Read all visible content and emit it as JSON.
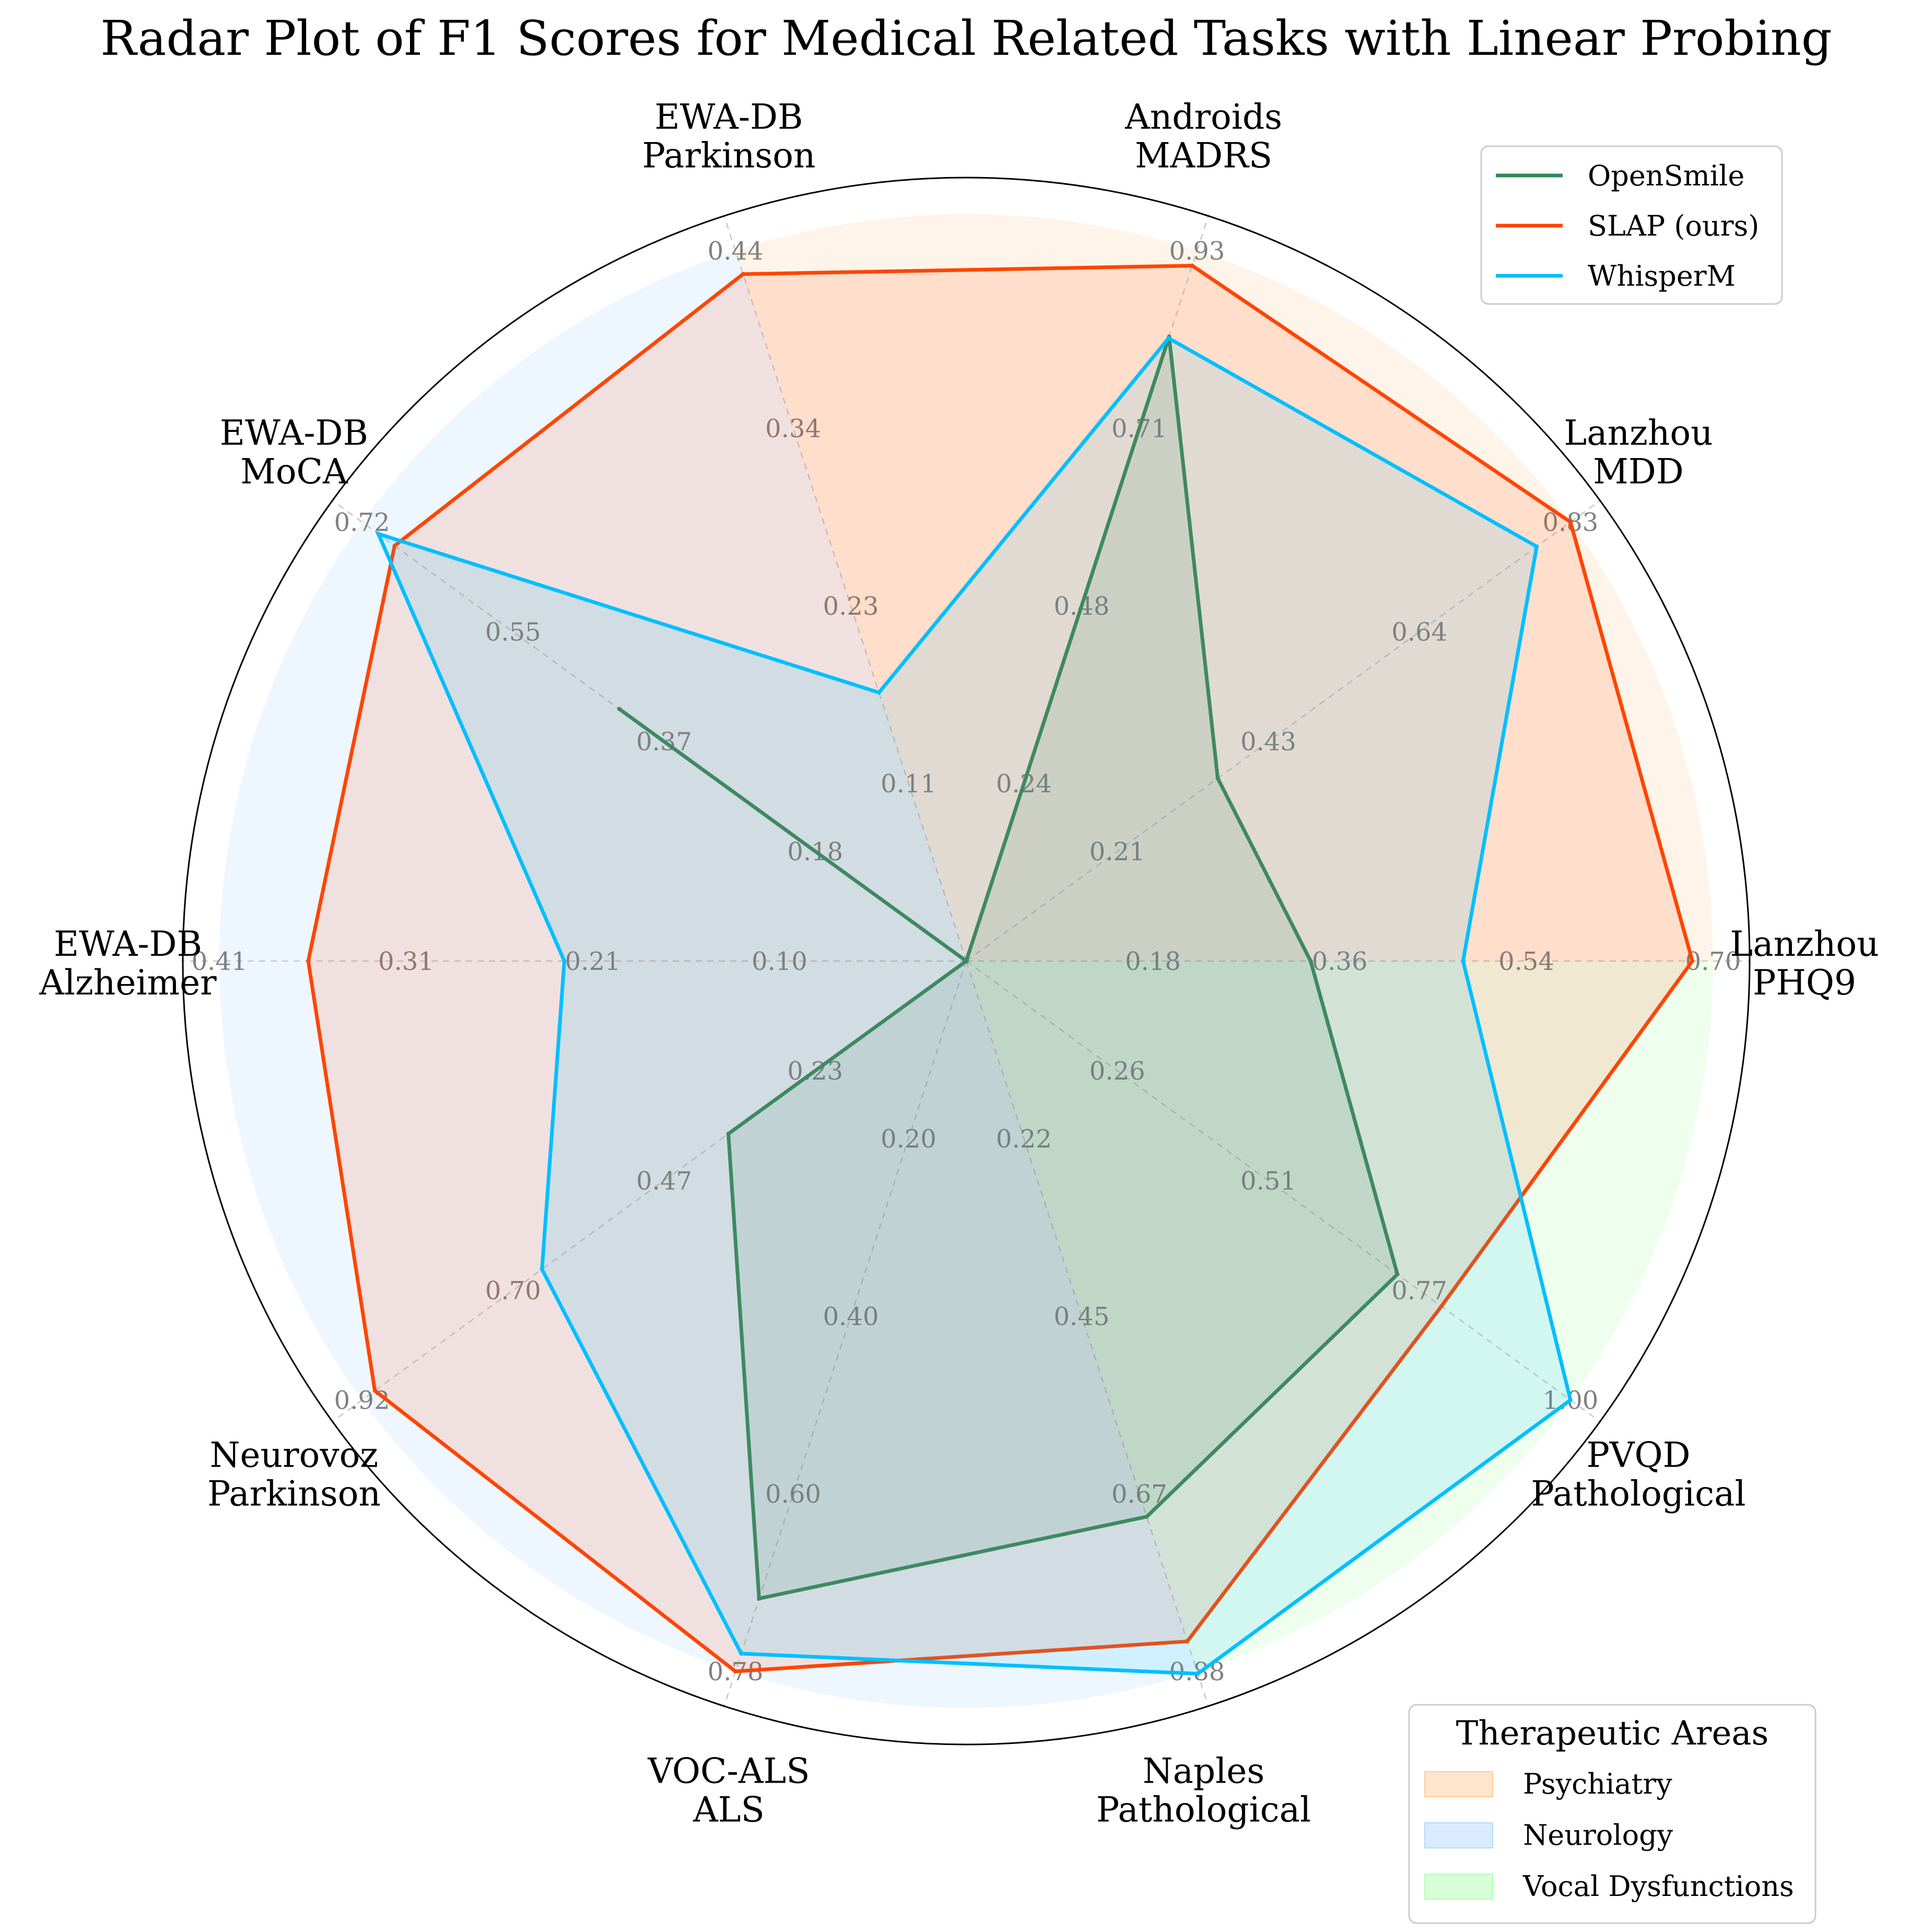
{
  "chart_data": {
    "type": "radar",
    "title": "Radar Plot of F1 Scores for Medical Related Tasks with Linear Probing",
    "axes": [
      {
        "dataset": "Lanzhou",
        "task": "PHQ9",
        "ticks": [
          "0.18",
          "0.36",
          "0.54",
          "0.70"
        ],
        "max": 0.72
      },
      {
        "dataset": "Lanzhou",
        "task": "MDD",
        "ticks": [
          "0.21",
          "0.43",
          "0.64",
          "0.83"
        ],
        "max": 0.86
      },
      {
        "dataset": "Androids",
        "task": "MADRS",
        "ticks": [
          "0.24",
          "0.48",
          "0.71",
          "0.93"
        ],
        "max": 0.95
      },
      {
        "dataset": "EWA-DB",
        "task": "Parkinson",
        "ticks": [
          "0.11",
          "0.23",
          "0.34",
          "0.44"
        ],
        "max": 0.455
      },
      {
        "dataset": "EWA-DB",
        "task": "MoCA",
        "ticks": [
          "0.18",
          "0.37",
          "0.55",
          "0.72"
        ],
        "max": 0.74
      },
      {
        "dataset": "EWA-DB",
        "task": "Alzheimer",
        "ticks": [
          "0.10",
          "0.21",
          "0.31",
          "0.41"
        ],
        "max": 0.42
      },
      {
        "dataset": "Neurovoz",
        "task": "Parkinson",
        "ticks": [
          "0.23",
          "0.47",
          "0.70",
          "0.92"
        ],
        "max": 0.94
      },
      {
        "dataset": "VOC-ALS",
        "task": "ALS",
        "ticks": [
          "0.20",
          "0.40",
          "0.60",
          "0.78"
        ],
        "max": 0.8
      },
      {
        "dataset": "Naples",
        "task": "Pathological",
        "ticks": [
          "0.22",
          "0.45",
          "0.67",
          "0.88"
        ],
        "max": 0.9
      },
      {
        "dataset": "PVQD",
        "task": "Pathological",
        "ticks": [
          "0.26",
          "0.51",
          "0.77",
          "1.00"
        ],
        "max": 1.03
      }
    ],
    "series": [
      {
        "name": "OpenSmile",
        "color": "#2e8b57",
        "values": [
          0.332,
          0.358,
          0.835,
          0.0,
          0.425,
          0.0,
          0.37,
          0.718,
          0.704,
          0.735
        ]
      },
      {
        "name": "SLAP (ours)",
        "color": "#ff4500",
        "values": [
          0.7,
          0.86,
          0.93,
          0.44,
          0.7,
          0.37,
          0.92,
          0.8,
          0.862,
          0.81
        ]
      },
      {
        "name": "WhisperM",
        "color": "#00bfff",
        "values": [
          0.479,
          0.812,
          0.833,
          0.172,
          0.72,
          0.226,
          0.66,
          0.78,
          0.903,
          1.03
        ]
      }
    ],
    "areas": [
      {
        "name": "Psychiatry",
        "color": "#ffcc99",
        "axes": [
          0,
          1,
          2,
          3
        ]
      },
      {
        "name": "Neurology",
        "color": "#b3d9ff",
        "axes": [
          3,
          4,
          5,
          6,
          7,
          8
        ]
      },
      {
        "name": "Vocal Dysfunctions",
        "color": "#b3ffb3",
        "axes": [
          8,
          9,
          0
        ]
      }
    ],
    "legend": {
      "position": "top-right"
    },
    "areas_legend": {
      "title": "Therapeutic Areas",
      "position": "bottom-right"
    },
    "grid": true
  }
}
